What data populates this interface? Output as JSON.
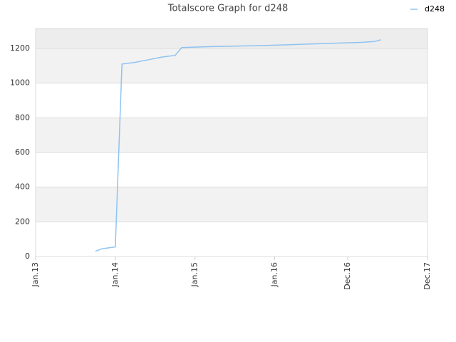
{
  "chart_data": {
    "type": "line",
    "title": "Totalscore Graph for d248",
    "x": [
      "2013-10",
      "2013-11",
      "2013-12",
      "2014-01",
      "2014-02",
      "2014-04",
      "2014-06",
      "2014-08",
      "2014-10",
      "2014-11",
      "2015-03",
      "2015-09",
      "2016-02",
      "2016-06",
      "2016-10",
      "2017-02",
      "2017-04",
      "2017-05"
    ],
    "series": [
      {
        "name": "d248",
        "color": "#8fc3f0",
        "values": [
          30,
          45,
          50,
          55,
          1110,
          1120,
          1135,
          1150,
          1160,
          1205,
          1210,
          1215,
          1220,
          1225,
          1230,
          1235,
          1240,
          1250
        ]
      }
    ],
    "xlim": [
      "2013-01",
      "2017-12"
    ],
    "xticks": [
      {
        "value": "2013-01",
        "label": "Jan.13"
      },
      {
        "value": "2014-01",
        "label": "Jan.14"
      },
      {
        "value": "2015-01",
        "label": "Jan.15"
      },
      {
        "value": "2016-01",
        "label": "Jan.16"
      },
      {
        "value": "2016-12",
        "label": "Dec.16"
      },
      {
        "value": "2017-12",
        "label": "Dec.17"
      }
    ],
    "ylim": [
      0,
      1315
    ],
    "yticks": [
      0,
      200,
      400,
      600,
      800,
      1000,
      1200
    ],
    "grid": true,
    "legend": "top-right"
  }
}
